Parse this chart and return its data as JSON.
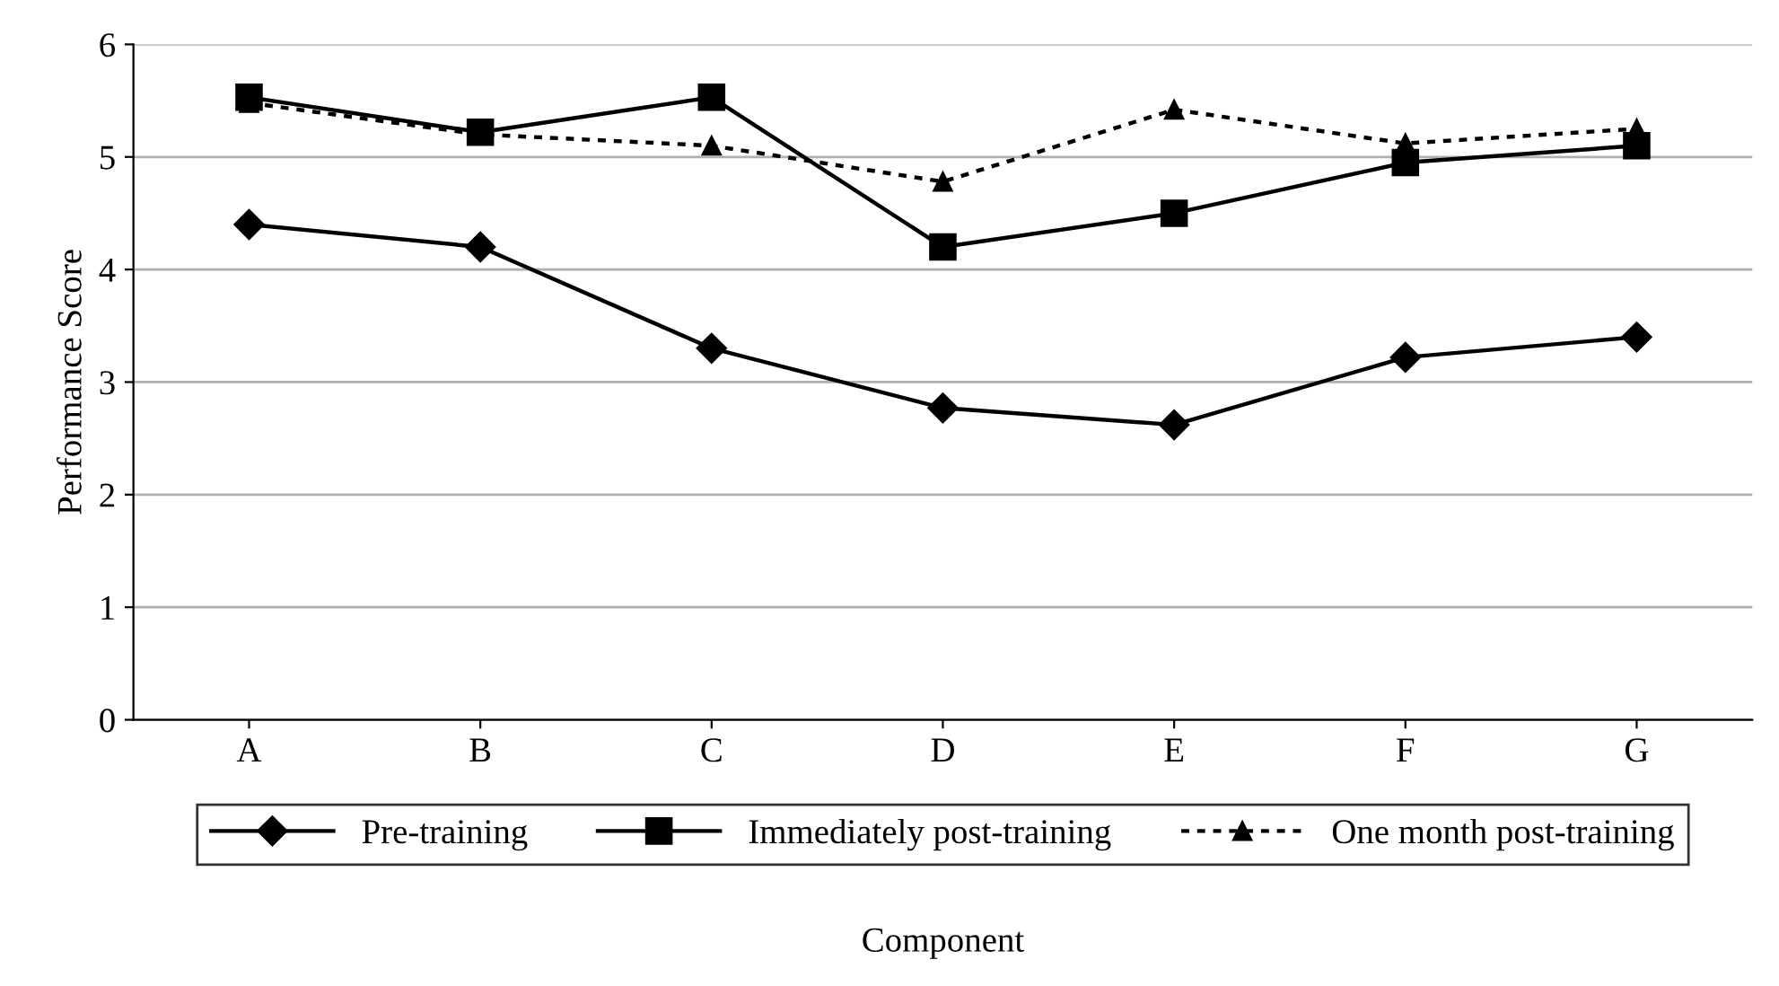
{
  "chart_data": {
    "type": "line",
    "xlabel": "Component",
    "ylabel": "Performance Score",
    "categories": [
      "A",
      "B",
      "C",
      "D",
      "E",
      "F",
      "G"
    ],
    "series": [
      {
        "name": "Pre-training",
        "color": "#000000",
        "marker": "diamond",
        "line_style": "solid",
        "values": [
          4.4,
          4.2,
          3.3,
          2.77,
          2.62,
          3.22,
          3.4
        ]
      },
      {
        "name": "Immediately post-training",
        "color": "#000000",
        "marker": "square",
        "line_style": "solid",
        "values": [
          5.53,
          5.22,
          5.53,
          4.2,
          4.5,
          4.95,
          5.1
        ]
      },
      {
        "name": "One month post-training",
        "color": "#000000",
        "marker": "triangle",
        "line_style": "dotted",
        "values": [
          5.48,
          5.2,
          5.1,
          4.78,
          5.42,
          5.12,
          5.25
        ]
      }
    ],
    "ylim": [
      0,
      6
    ],
    "yticks": [
      0,
      1,
      2,
      3,
      4,
      5,
      6
    ],
    "grid": "y",
    "legend": "bottom"
  }
}
